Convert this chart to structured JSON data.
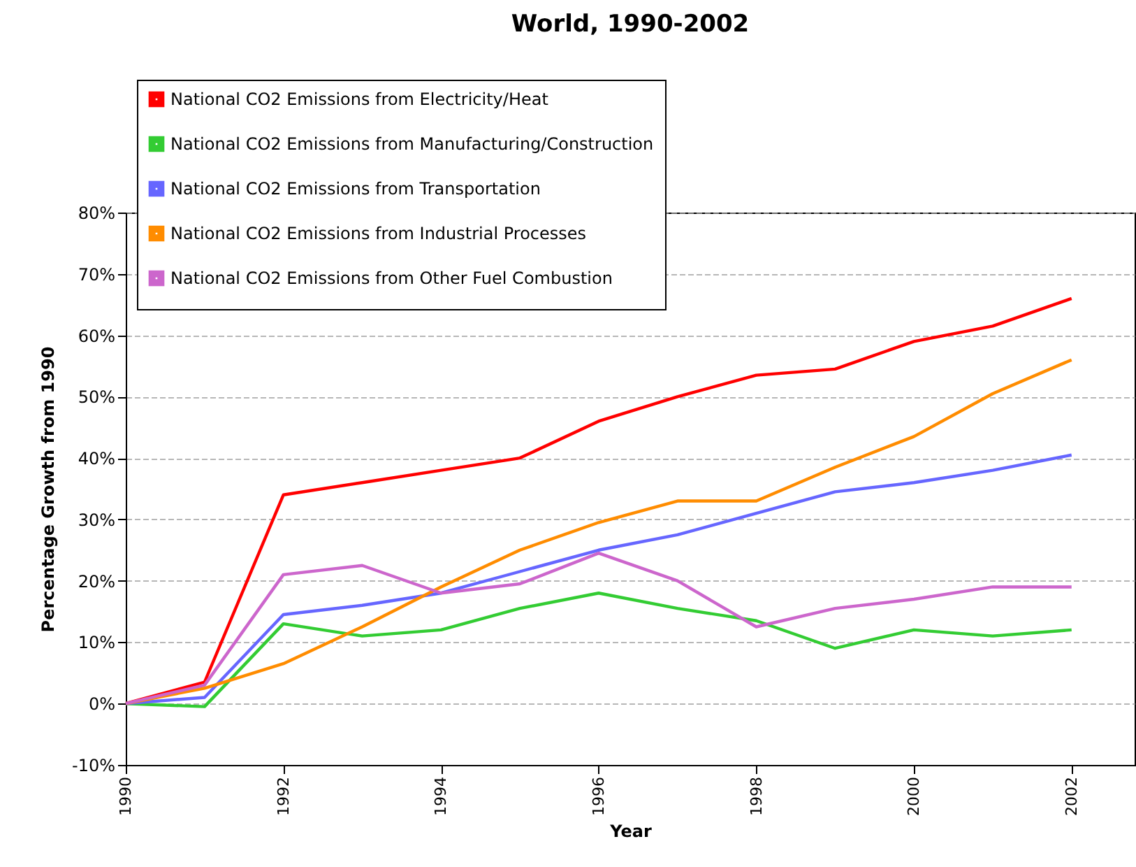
{
  "chart_data": {
    "type": "line",
    "title": "World, 1990-2002",
    "xlabel": "Year",
    "ylabel": "Percentage Growth from 1990",
    "x": [
      1990,
      1991,
      1992,
      1993,
      1994,
      1995,
      1996,
      1997,
      1998,
      1999,
      2000,
      2001,
      2002
    ],
    "series": [
      {
        "name": "National CO2 Emissions from Electricity/Heat",
        "color": "#ff0000",
        "values": [
          0,
          3.5,
          34,
          36,
          38,
          40,
          46,
          50,
          53.5,
          54.5,
          59,
          61.5,
          66
        ]
      },
      {
        "name": "National CO2 Emissions from Manufacturing/Construction",
        "color": "#33cc33",
        "values": [
          0,
          -0.5,
          13,
          11,
          12,
          15.5,
          18,
          15.5,
          13.5,
          9,
          12,
          11,
          12
        ]
      },
      {
        "name": "National CO2 Emissions from Transportation",
        "color": "#6666ff",
        "values": [
          0,
          1,
          14.5,
          16,
          18,
          21.5,
          25,
          27.5,
          31,
          34.5,
          36,
          38,
          40.5
        ]
      },
      {
        "name": "National CO2 Emissions from Industrial Processes",
        "color": "#ff8c00",
        "values": [
          0,
          2.5,
          6.5,
          12.5,
          19,
          25,
          29.5,
          33,
          33,
          38.5,
          43.5,
          50.5,
          56
        ]
      },
      {
        "name": "National CO2 Emissions from Other Fuel Combustion",
        "color": "#cc66cc",
        "values": [
          0,
          3,
          21,
          22.5,
          18,
          19.5,
          24.5,
          20,
          12.5,
          15.5,
          17,
          19,
          19
        ]
      }
    ],
    "xlim": [
      1990,
      2002.8
    ],
    "xticks": [
      1990,
      1992,
      1994,
      1996,
      1998,
      2000,
      2002
    ],
    "ylim": [
      -10,
      80
    ],
    "yticks": [
      {
        "value": -10,
        "label": "-10%"
      },
      {
        "value": 0,
        "label": "0%"
      },
      {
        "value": 10,
        "label": "10%"
      },
      {
        "value": 20,
        "label": "20%"
      },
      {
        "value": 30,
        "label": "30%"
      },
      {
        "value": 40,
        "label": "40%"
      },
      {
        "value": 50,
        "label": "50%"
      },
      {
        "value": 60,
        "label": "60%"
      },
      {
        "value": 70,
        "label": "70%"
      },
      {
        "value": 80,
        "label": "80%"
      }
    ],
    "grid": "y",
    "legend": "top left",
    "marker": "none",
    "line_style": "solid"
  }
}
